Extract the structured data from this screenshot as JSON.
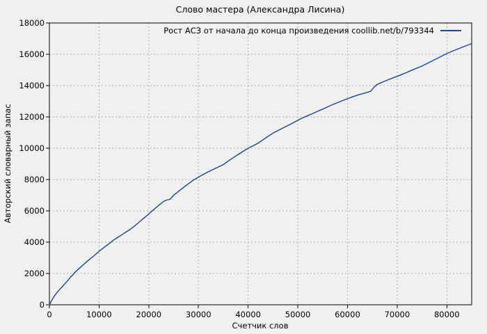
{
  "figure": {
    "background": "#f0f0ee",
    "border_color": "#000000",
    "grid_color": "#aeaeae",
    "tick_color": "#000000",
    "text_color": "#000000"
  },
  "chart_data": {
    "type": "line",
    "title": "Слово мастера (Александра Лисина)",
    "xlabel": "Счетчик слов",
    "ylabel": "Авторский словарный запас",
    "xlim": [
      0,
      85000
    ],
    "ylim": [
      0,
      18000
    ],
    "xticks": [
      0,
      10000,
      20000,
      30000,
      40000,
      50000,
      60000,
      70000,
      80000
    ],
    "yticks": [
      0,
      2000,
      4000,
      6000,
      8000,
      10000,
      12000,
      14000,
      16000,
      18000
    ],
    "grid": true,
    "legend_position": "top-right-inside",
    "series": [
      {
        "name": "Рост АСЗ от начала до конца произведения coollib.net/b/793344",
        "color": "#18459c",
        "points": [
          [
            0,
            0
          ],
          [
            500,
            300
          ],
          [
            1000,
            560
          ],
          [
            1500,
            770
          ],
          [
            2000,
            950
          ],
          [
            2500,
            1130
          ],
          [
            3000,
            1300
          ],
          [
            3500,
            1480
          ],
          [
            4000,
            1660
          ],
          [
            4300,
            1790
          ],
          [
            4700,
            1900
          ],
          [
            5000,
            2030
          ],
          [
            6000,
            2320
          ],
          [
            7000,
            2610
          ],
          [
            8000,
            2880
          ],
          [
            9000,
            3140
          ],
          [
            10000,
            3420
          ],
          [
            11000,
            3660
          ],
          [
            12000,
            3900
          ],
          [
            13000,
            4150
          ],
          [
            14000,
            4350
          ],
          [
            15000,
            4560
          ],
          [
            16000,
            4760
          ],
          [
            17000,
            4990
          ],
          [
            18000,
            5260
          ],
          [
            19000,
            5530
          ],
          [
            20000,
            5800
          ],
          [
            21000,
            6080
          ],
          [
            22000,
            6350
          ],
          [
            23000,
            6600
          ],
          [
            23600,
            6690
          ],
          [
            24300,
            6740
          ],
          [
            25000,
            7000
          ],
          [
            26000,
            7250
          ],
          [
            27000,
            7500
          ],
          [
            28000,
            7740
          ],
          [
            29000,
            7970
          ],
          [
            30000,
            8150
          ],
          [
            31000,
            8330
          ],
          [
            32000,
            8500
          ],
          [
            33000,
            8650
          ],
          [
            34000,
            8800
          ],
          [
            35000,
            8950
          ],
          [
            36000,
            9180
          ],
          [
            37000,
            9390
          ],
          [
            38000,
            9600
          ],
          [
            39000,
            9800
          ],
          [
            40000,
            10000
          ],
          [
            41000,
            10150
          ],
          [
            42000,
            10320
          ],
          [
            43000,
            10540
          ],
          [
            44000,
            10750
          ],
          [
            45000,
            10960
          ],
          [
            46000,
            11130
          ],
          [
            47000,
            11290
          ],
          [
            48000,
            11450
          ],
          [
            49000,
            11610
          ],
          [
            50000,
            11780
          ],
          [
            51000,
            11940
          ],
          [
            52000,
            12080
          ],
          [
            53000,
            12220
          ],
          [
            54000,
            12360
          ],
          [
            55000,
            12500
          ],
          [
            56000,
            12640
          ],
          [
            57000,
            12780
          ],
          [
            58000,
            12910
          ],
          [
            59000,
            13040
          ],
          [
            60000,
            13160
          ],
          [
            61000,
            13280
          ],
          [
            62000,
            13390
          ],
          [
            63000,
            13480
          ],
          [
            64000,
            13570
          ],
          [
            64700,
            13640
          ],
          [
            65300,
            13880
          ],
          [
            66000,
            14080
          ],
          [
            67000,
            14220
          ],
          [
            68000,
            14350
          ],
          [
            69000,
            14470
          ],
          [
            70000,
            14590
          ],
          [
            71000,
            14720
          ],
          [
            72000,
            14850
          ],
          [
            73000,
            14990
          ],
          [
            74000,
            15120
          ],
          [
            75000,
            15250
          ],
          [
            76000,
            15410
          ],
          [
            77000,
            15570
          ],
          [
            78000,
            15730
          ],
          [
            79000,
            15890
          ],
          [
            80000,
            16050
          ],
          [
            81000,
            16180
          ],
          [
            82000,
            16310
          ],
          [
            83000,
            16440
          ],
          [
            84000,
            16560
          ],
          [
            85000,
            16680
          ]
        ]
      }
    ]
  }
}
